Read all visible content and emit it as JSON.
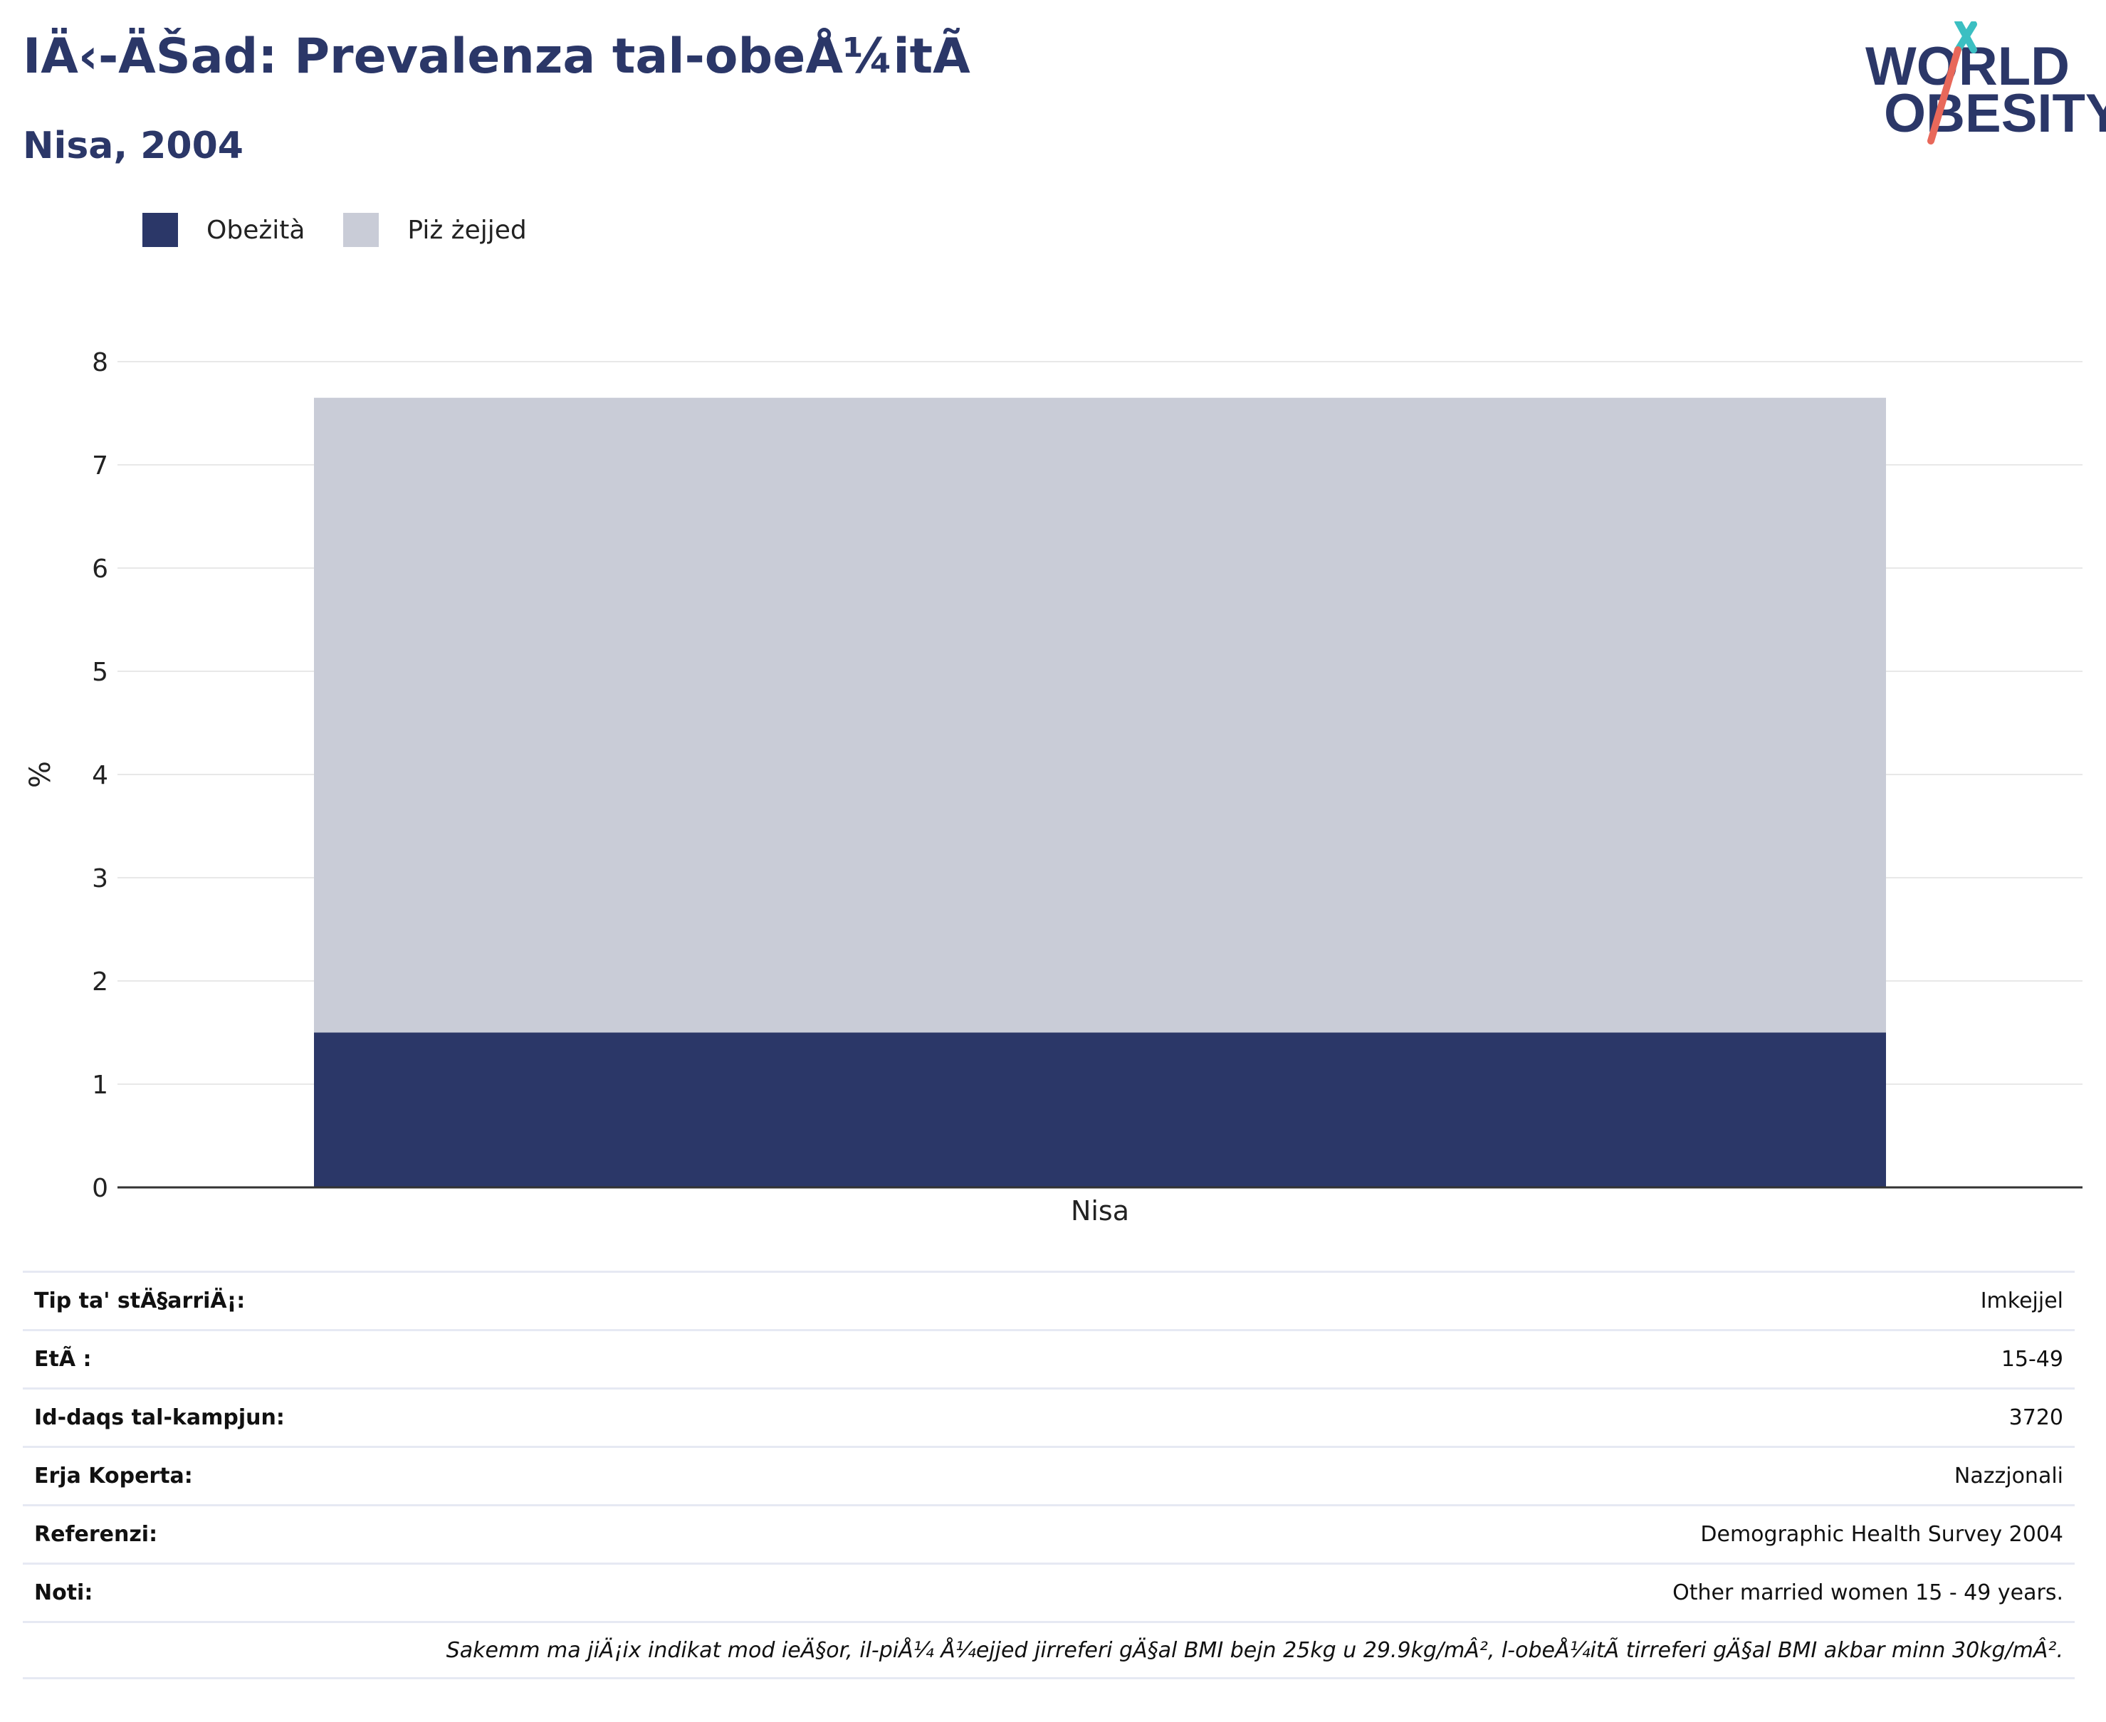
{
  "header": {
    "title": "IÄ‹-ÄŠad: Prevalenza tal-obeÅ¼itÃ",
    "subtitle": "Nisa, 2004"
  },
  "logo": {
    "line1": "WORLD",
    "line2": "OBESITY"
  },
  "colors": {
    "obesity": "#2b3768",
    "overweight": "#c9ccd7",
    "axis": "#333333",
    "grid": "#e8e8e8",
    "brand_teal": "#3bbfc2",
    "brand_coral": "#e8685a"
  },
  "chart_data": {
    "type": "bar",
    "stacked": true,
    "categories": [
      "Nisa"
    ],
    "series": [
      {
        "name": "Obeżità",
        "values": [
          1.5
        ],
        "color": "#2b3768"
      },
      {
        "name": "Piż żejjed",
        "values": [
          6.15
        ],
        "color": "#c9ccd7"
      }
    ],
    "ylabel": "%",
    "ylim": [
      0,
      8
    ],
    "yticks": [
      "0",
      "1",
      "2",
      "3",
      "4",
      "5",
      "6",
      "7",
      "8"
    ],
    "grid": true,
    "legend_position": "top-left"
  },
  "info_table": [
    {
      "key": "Tip ta' stÄ§arriÄ¡:",
      "value": "Imkejjel"
    },
    {
      "key": "EtÃ :",
      "value": "15-49"
    },
    {
      "key": "Id-daqs tal-kampjun:",
      "value": "3720"
    },
    {
      "key": "Erja Koperta:",
      "value": "Nazzjonali"
    },
    {
      "key": "Referenzi:",
      "value": "Demographic Health Survey 2004"
    },
    {
      "key": "Noti:",
      "value": "Other married women 15 - 49 years."
    }
  ],
  "footnote": "Sakemm ma jiÄ¡ix indikat mod ieÄ§or, il-piÅ¼ Å¼ejjed jirreferi gÄ§al BMI bejn 25kg u 29.9kg/mÂ², l-obeÅ¼itÃ  tirreferi gÄ§al BMI akbar minn 30kg/mÂ²."
}
